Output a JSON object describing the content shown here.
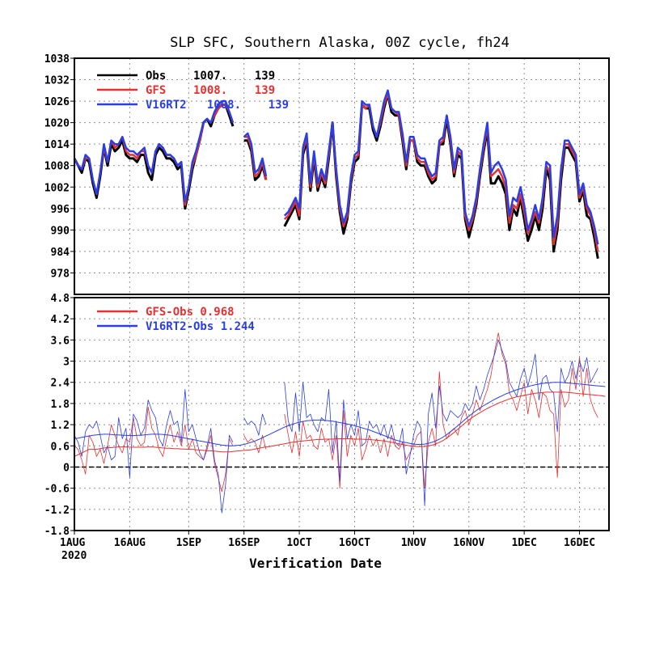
{
  "title": "SLP SFC, Southern Alaska, 00Z cycle, fh24",
  "xlabel": "Verification Date",
  "colors": {
    "Obs": "#000000",
    "GFS": "#e83030",
    "V16RT2": "#2a3ee8"
  },
  "chart_data": [
    {
      "type": "line",
      "panel": "top",
      "ylabel": "",
      "ylim": [
        972,
        1038
      ],
      "yticks": [
        "1038",
        "1032",
        "1026",
        "1020",
        "1014",
        "1008",
        "1002",
        "996",
        "990",
        "984",
        "978"
      ],
      "x_start": "2020-08-01",
      "x_end": "2020-12-24",
      "xticks": [
        {
          "date": "2020-08-01",
          "label": "1AUG"
        },
        {
          "date": "2020-08-16",
          "label": "16AUG"
        },
        {
          "date": "2020-09-01",
          "label": "1SEP"
        },
        {
          "date": "2020-09-16",
          "label": "16SEP"
        },
        {
          "date": "2020-10-01",
          "label": "1OCT"
        },
        {
          "date": "2020-10-16",
          "label": "16OCT"
        },
        {
          "date": "2020-11-01",
          "label": "1NOV"
        },
        {
          "date": "2020-11-16",
          "label": "16NOV"
        },
        {
          "date": "2020-12-01",
          "label": "1DEC"
        },
        {
          "date": "2020-12-16",
          "label": "16DEC"
        }
      ],
      "year_label": "2020",
      "legend": [
        {
          "key": "Obs",
          "label": "Obs    1007.    139"
        },
        {
          "key": "GFS",
          "label": "GFS    1008.    139"
        },
        {
          "key": "V16RT2",
          "label": "V16RT2   1008.    139"
        }
      ],
      "legend_position": "top-left",
      "grid": true,
      "obs_values": [
        1010,
        1008,
        1006,
        1010,
        1009,
        1003,
        999,
        1005,
        1013,
        1008,
        1014,
        1012,
        1013,
        1015,
        1011,
        1010,
        1010,
        1009,
        1011,
        1011,
        1006,
        1004,
        1011,
        1013,
        1012,
        1010,
        1010,
        1009,
        1007,
        1008,
        996,
        1001,
        1007,
        1011,
        1015,
        1020,
        1021,
        1019,
        1022,
        1024,
        1025,
        1025,
        1022,
        1019,
        null,
        null,
        1015,
        1015,
        1012,
        1004,
        1005,
        1008,
        1004,
        null,
        null,
        null,
        null,
        991,
        993,
        995,
        997,
        993,
        1011,
        1015,
        1001,
        1010,
        1001,
        1005,
        1002,
        1010,
        1020,
        1005,
        995,
        989,
        993,
        1003,
        1009,
        1010,
        1025,
        1024,
        1024,
        1018,
        1015,
        1019,
        1024,
        1028,
        1023,
        1022,
        1022,
        1015,
        1007,
        1015,
        1015,
        1009,
        1008,
        1008,
        1005,
        1003,
        1004,
        1014,
        1014,
        1021,
        1014,
        1005,
        1011,
        1010,
        993,
        988,
        992,
        997,
        1005,
        1012,
        1018,
        1003,
        1003,
        1005,
        1003,
        1000,
        990,
        996,
        994,
        999,
        993,
        987,
        990,
        994,
        990,
        996,
        1007,
        1004,
        984,
        990,
        1004,
        1013,
        1013,
        1011,
        1009,
        998,
        1001,
        994,
        993,
        988,
        982
      ],
      "gfs_values": [
        1010,
        1008,
        1007,
        1010,
        1010,
        1004,
        1000,
        1006,
        1013,
        1009,
        1015,
        1013,
        1014,
        1016,
        1012,
        1011,
        1011,
        1010,
        1012,
        1012,
        1008,
        1006,
        1012,
        1014,
        1013,
        1011,
        1011,
        1010,
        1008,
        1009,
        997,
        1002,
        1008,
        1011,
        1015,
        1020,
        1021,
        1020,
        1022,
        1024,
        1025,
        1025,
        1023,
        1020,
        null,
        null,
        1016,
        1016,
        1013,
        1005,
        1006,
        1009,
        1004,
        null,
        null,
        null,
        null,
        993,
        994,
        996,
        998,
        994,
        1012,
        1016,
        1002,
        1011,
        1002,
        1006,
        1003,
        1011,
        1020,
        1006,
        996,
        991,
        994,
        1004,
        1010,
        1011,
        1025,
        1024,
        1025,
        1019,
        1016,
        1020,
        1025,
        1028,
        1024,
        1023,
        1022,
        1016,
        1008,
        1015,
        1015,
        1010,
        1009,
        1009,
        1006,
        1004,
        1005,
        1014,
        1015,
        1022,
        1015,
        1006,
        1012,
        1011,
        994,
        990,
        993,
        998,
        1006,
        1013,
        1019,
        1005,
        1006,
        1007,
        1005,
        1002,
        992,
        997,
        996,
        1000,
        995,
        989,
        992,
        995,
        992,
        998,
        1008,
        1006,
        986,
        992,
        1006,
        1014,
        1014,
        1012,
        1010,
        999,
        1002,
        996,
        994,
        990,
        984
      ],
      "v16_values": [
        1010,
        1008,
        1007,
        1011,
        1010,
        1004,
        1000,
        1006,
        1014,
        1009,
        1015,
        1014,
        1014,
        1016,
        1013,
        1012,
        1012,
        1011,
        1012,
        1013,
        1008,
        1006,
        1012,
        1014,
        1013,
        1011,
        1011,
        1010,
        1008,
        1009,
        998,
        1002,
        1009,
        1012,
        1016,
        1020,
        1021,
        1020,
        1023,
        1025,
        1026,
        1026,
        1023,
        1020,
        null,
        null,
        1016,
        1017,
        1014,
        1006,
        1007,
        1010,
        1005,
        null,
        null,
        null,
        null,
        994,
        995,
        997,
        999,
        996,
        1013,
        1017,
        1003,
        1012,
        1003,
        1007,
        1004,
        1012,
        1020,
        1007,
        997,
        992,
        995,
        1005,
        1011,
        1012,
        1026,
        1025,
        1025,
        1019,
        1016,
        1021,
        1026,
        1029,
        1024,
        1023,
        1023,
        1017,
        1009,
        1016,
        1016,
        1011,
        1010,
        1010,
        1007,
        1005,
        1006,
        1015,
        1016,
        1022,
        1016,
        1007,
        1013,
        1012,
        995,
        991,
        994,
        999,
        1007,
        1014,
        1020,
        1006,
        1008,
        1009,
        1007,
        1004,
        994,
        999,
        998,
        1002,
        997,
        990,
        993,
        997,
        993,
        999,
        1009,
        1008,
        988,
        994,
        1007,
        1015,
        1015,
        1013,
        1011,
        1000,
        1003,
        997,
        995,
        991,
        986
      ]
    },
    {
      "type": "line",
      "panel": "bottom",
      "ylabel": "",
      "ylim": [
        -1.8,
        4.8
      ],
      "yticks": [
        "4.8",
        "4.2",
        "3.6",
        "3",
        "2.4",
        "1.8",
        "1.2",
        "0.6",
        "0",
        "-0.6",
        "-1.2",
        "-1.8"
      ],
      "legend": [
        {
          "key": "GFS",
          "label": "GFS-Obs 0.968"
        },
        {
          "key": "V16RT2",
          "label": "V16RT2-Obs 1.244"
        }
      ],
      "legend_position": "top-left",
      "grid": true,
      "gfs_diff": [
        0.6,
        0.5,
        0.2,
        -0.2,
        0.9,
        0.7,
        0.3,
        0.5,
        0.1,
        0.6,
        1.2,
        0.9,
        0.6,
        0.4,
        0.8,
        0.7,
        1.4,
        0.8,
        0.6,
        0.7,
        1.7,
        1.1,
        0.9,
        0.5,
        0.3,
        0.8,
        1.2,
        0.7,
        1.0,
        0.6,
        1.2,
        0.5,
        0.8,
        0.4,
        0.3,
        0.2,
        0.5,
        0.9,
        0.1,
        -0.3,
        -0.7,
        -0.2,
        0.8,
        0.6,
        null,
        null,
        0.9,
        0.7,
        0.8,
        0.7,
        0.4,
        0.9,
        0.5,
        null,
        null,
        null,
        null,
        1.5,
        0.9,
        0.4,
        1.0,
        0.3,
        1.3,
        0.8,
        0.9,
        0.6,
        0.5,
        1.1,
        0.7,
        0.8,
        0.2,
        0.9,
        -0.6,
        1.6,
        0.3,
        0.9,
        0.6,
        1.1,
        0.2,
        0.5,
        0.9,
        0.6,
        0.8,
        0.4,
        0.8,
        0.3,
        0.9,
        0.6,
        0.5,
        0.7,
        0.2,
        0.4,
        0.6,
        0.9,
        1.0,
        -0.6,
        0.7,
        1.1,
        0.6,
        2.7,
        1.2,
        0.8,
        1.0,
        1.1,
        0.9,
        1.4,
        1.6,
        1.2,
        1.5,
        1.9,
        1.6,
        1.9,
        2.2,
        2.6,
        3.3,
        3.8,
        3.2,
        2.9,
        2.1,
        1.9,
        1.6,
        2.0,
        2.4,
        1.5,
        2.2,
        1.9,
        1.4,
        2.1,
        2.0,
        1.6,
        1.5,
        -0.3,
        2.2,
        1.7,
        1.9,
        2.8,
        2.2,
        3.1,
        2.0,
        2.8,
        1.9,
        1.6,
        1.4
      ],
      "v16_diff": [
        0.9,
        0.7,
        0.3,
        1.0,
        1.2,
        1.1,
        1.3,
        0.9,
        0.4,
        0.6,
        0.2,
        0.3,
        1.4,
        0.8,
        1.1,
        -0.3,
        1.5,
        1.3,
        0.9,
        1.1,
        1.9,
        1.6,
        1.4,
        0.8,
        0.6,
        1.2,
        1.6,
        1.2,
        1.3,
        0.7,
        2.2,
        1.0,
        1.2,
        0.8,
        0.4,
        0.2,
        0.6,
        1.1,
        0.2,
        -0.2,
        -1.3,
        -0.5,
        0.9,
        0.7,
        null,
        null,
        1.4,
        1.2,
        1.3,
        1.2,
        0.9,
        1.5,
        1.2,
        null,
        null,
        null,
        null,
        2.4,
        1.3,
        1.0,
        2.1,
        1.0,
        2.4,
        1.4,
        1.5,
        1.2,
        1.0,
        1.4,
        1.3,
        2.2,
        0.4,
        1.3,
        -0.4,
        1.9,
        0.8,
        1.2,
        0.9,
        1.6,
        0.6,
        0.7,
        1.3,
        1.1,
        1.2,
        0.9,
        1.2,
        0.8,
        1.2,
        0.7,
        0.6,
        1.1,
        -0.2,
        0.3,
        0.9,
        1.3,
        1.1,
        -1.1,
        1.5,
        2.1,
        1.1,
        2.3,
        1.5,
        1.3,
        1.6,
        1.5,
        1.4,
        1.5,
        1.8,
        1.6,
        1.8,
        2.3,
        1.9,
        2.2,
        2.6,
        2.9,
        3.2,
        3.6,
        3.3,
        3.0,
        2.4,
        2.2,
        2.0,
        2.5,
        2.8,
        2.3,
        2.7,
        3.2,
        1.9,
        2.5,
        2.6,
        2.2,
        2.1,
        1.0,
        2.8,
        2.4,
        2.6,
        3.0,
        2.5,
        3.0,
        2.7,
        3.1,
        2.4,
        2.6,
        2.8
      ],
      "gfs_mean": [
        0.3,
        0.35,
        0.4,
        0.45,
        0.5,
        0.5,
        0.5,
        0.52,
        0.54,
        0.55,
        0.55,
        0.56,
        0.57,
        0.57,
        0.57,
        0.56,
        0.56,
        0.56,
        0.56,
        0.56,
        0.57,
        0.57,
        0.56,
        0.55,
        0.54,
        0.53,
        0.53,
        0.52,
        0.52,
        0.51,
        0.51,
        0.5,
        0.5,
        0.49,
        0.48,
        0.47,
        0.46,
        0.46,
        0.45,
        0.44,
        0.43,
        0.43,
        0.43,
        0.44,
        0.45,
        0.46,
        0.47,
        0.48,
        0.49,
        0.51,
        0.53,
        0.55,
        0.57,
        0.58,
        0.6,
        0.62,
        0.64,
        0.66,
        0.68,
        0.7,
        0.71,
        0.73,
        0.74,
        0.75,
        0.76,
        0.77,
        0.78,
        0.78,
        0.79,
        0.79,
        0.79,
        0.8,
        0.8,
        0.8,
        0.8,
        0.8,
        0.79,
        0.79,
        0.79,
        0.78,
        0.78,
        0.77,
        0.76,
        0.75,
        0.74,
        0.72,
        0.7,
        0.68,
        0.66,
        0.64,
        0.62,
        0.6,
        0.59,
        0.58,
        0.58,
        0.58,
        0.6,
        0.62,
        0.65,
        0.7,
        0.75,
        0.82,
        0.9,
        0.98,
        1.07,
        1.16,
        1.25,
        1.33,
        1.41,
        1.48,
        1.54,
        1.6,
        1.66,
        1.71,
        1.76,
        1.81,
        1.85,
        1.89,
        1.93,
        1.96,
        1.99,
        2.01,
        2.03,
        2.05,
        2.07,
        2.09,
        2.1,
        2.11,
        2.12,
        2.12,
        2.12,
        2.12,
        2.12,
        2.12,
        2.11,
        2.1,
        2.09,
        2.08,
        2.07,
        2.06,
        2.05,
        2.04,
        2.03,
        2.02,
        2.0
      ],
      "v16_mean": [
        0.8,
        0.82,
        0.84,
        0.86,
        0.88,
        0.9,
        0.91,
        0.92,
        0.93,
        0.93,
        0.92,
        0.91,
        0.91,
        0.9,
        0.9,
        0.89,
        0.89,
        0.9,
        0.9,
        0.91,
        0.92,
        0.93,
        0.93,
        0.93,
        0.92,
        0.91,
        0.9,
        0.88,
        0.86,
        0.84,
        0.82,
        0.8,
        0.78,
        0.76,
        0.74,
        0.72,
        0.7,
        0.68,
        0.66,
        0.64,
        0.62,
        0.61,
        0.6,
        0.6,
        0.61,
        0.62,
        0.64,
        0.67,
        0.7,
        0.74,
        0.78,
        0.83,
        0.88,
        0.93,
        0.98,
        1.03,
        1.08,
        1.13,
        1.17,
        1.21,
        1.24,
        1.27,
        1.29,
        1.31,
        1.32,
        1.33,
        1.33,
        1.33,
        1.32,
        1.31,
        1.3,
        1.28,
        1.26,
        1.24,
        1.22,
        1.2,
        1.17,
        1.14,
        1.11,
        1.08,
        1.05,
        1.01,
        0.97,
        0.93,
        0.89,
        0.85,
        0.81,
        0.77,
        0.74,
        0.71,
        0.69,
        0.67,
        0.65,
        0.64,
        0.64,
        0.65,
        0.67,
        0.7,
        0.74,
        0.79,
        0.85,
        0.92,
        1.0,
        1.08,
        1.17,
        1.26,
        1.35,
        1.44,
        1.52,
        1.6,
        1.67,
        1.74,
        1.8,
        1.86,
        1.92,
        1.97,
        2.02,
        2.07,
        2.11,
        2.15,
        2.19,
        2.22,
        2.25,
        2.28,
        2.31,
        2.33,
        2.35,
        2.37,
        2.38,
        2.39,
        2.4,
        2.4,
        2.4,
        2.39,
        2.38,
        2.37,
        2.36,
        2.35,
        2.34,
        2.33,
        2.32,
        2.31,
        2.3,
        2.29,
        2.28
      ]
    }
  ]
}
